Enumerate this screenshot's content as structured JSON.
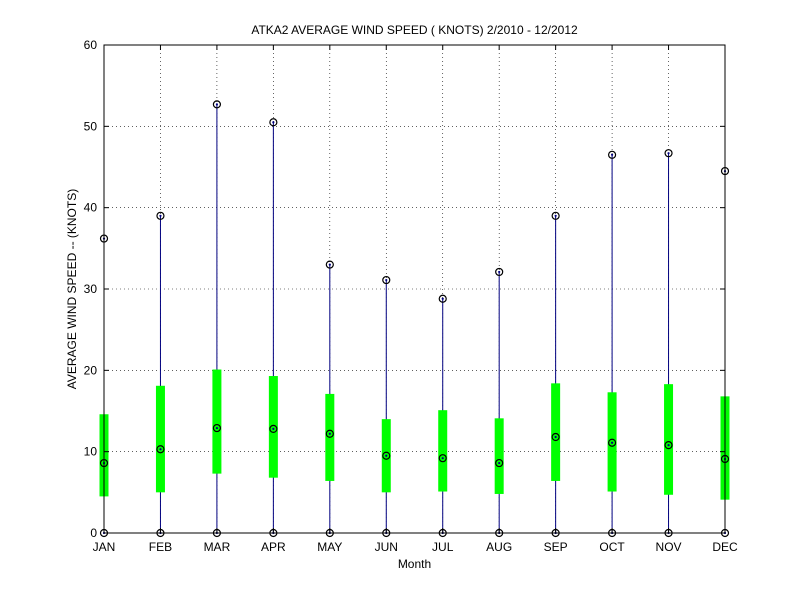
{
  "chart_data": {
    "type": "box",
    "title": "ATKA2  AVERAGE WIND SPEED ( KNOTS) 2/2010 - 12/2012",
    "xlabel": "Month",
    "ylabel": "AVERAGE WIND SPEED -- (KNOTS)",
    "ylim": [
      0,
      60
    ],
    "yticks": [
      0,
      10,
      20,
      30,
      40,
      50,
      60
    ],
    "grid": true,
    "categories": [
      "JAN",
      "FEB",
      "MAR",
      "APR",
      "MAY",
      "JUN",
      "JUL",
      "AUG",
      "SEP",
      "OCT",
      "NOV",
      "DEC"
    ],
    "min": [
      0,
      0,
      0,
      0,
      0,
      0,
      0,
      0,
      0,
      0,
      0,
      0
    ],
    "max": [
      36.2,
      39.0,
      52.7,
      50.5,
      33.0,
      31.1,
      28.8,
      32.1,
      39.0,
      46.5,
      46.7,
      44.5
    ],
    "q1": [
      4.5,
      5.0,
      7.3,
      6.8,
      6.4,
      5.0,
      5.1,
      4.8,
      6.4,
      5.1,
      4.7,
      4.1
    ],
    "q3": [
      14.6,
      18.1,
      20.1,
      19.3,
      17.1,
      14.0,
      15.1,
      14.1,
      18.4,
      17.3,
      18.3,
      16.8
    ],
    "mean": [
      8.6,
      10.3,
      12.9,
      12.8,
      12.2,
      9.5,
      9.2,
      8.6,
      11.8,
      11.1,
      10.8,
      9.1
    ],
    "whisker_color": "#00007f",
    "box_color": "#00ff00",
    "marker_color": "#000000"
  }
}
